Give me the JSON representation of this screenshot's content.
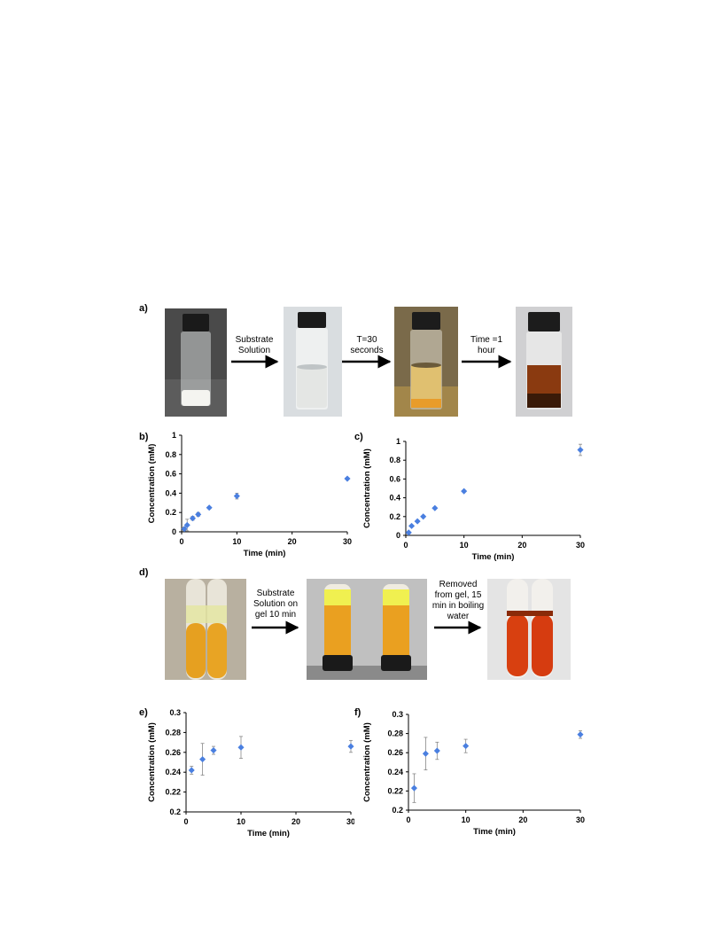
{
  "labels": {
    "a": "a)",
    "b": "b)",
    "c": "c)",
    "d": "d)",
    "e": "e)",
    "f": "f)"
  },
  "row_a_steps": [
    [
      "Substrate",
      "Solution"
    ],
    [
      "T=30",
      "seconds"
    ],
    [
      "Time =1",
      "hour"
    ]
  ],
  "row_d_steps": [
    [
      "Substrate",
      "Solution on",
      "gel 10 min"
    ],
    [
      "Removed",
      "from gel, 15",
      "min in boiling",
      "water"
    ]
  ],
  "colors": {
    "marker": "#4a7fe0",
    "errorbar": "#888888"
  },
  "chart_data": [
    {
      "panel": "b",
      "type": "scatter",
      "xlabel": "Time (min)",
      "ylabel": "Concentration (mM)",
      "xlim": [
        0,
        30
      ],
      "ylim": [
        0,
        1
      ],
      "xticks": [
        "0",
        "10",
        "20",
        "30"
      ],
      "yticks": [
        "0",
        "0.2",
        "0.4",
        "0.6",
        "0.8",
        "1"
      ],
      "x": [
        0.5,
        1,
        2,
        3,
        5,
        10,
        30
      ],
      "y": [
        0.03,
        0.07,
        0.14,
        0.18,
        0.25,
        0.37,
        0.55
      ],
      "err": [
        0.02,
        0.06,
        0.02,
        0.02,
        0.01,
        0.03,
        0.01
      ]
    },
    {
      "panel": "c",
      "type": "scatter",
      "xlabel": "Time (min)",
      "ylabel": "Concentration (mM)",
      "xlim": [
        0,
        30
      ],
      "ylim": [
        0,
        1
      ],
      "xticks": [
        "0",
        "10",
        "20",
        "30"
      ],
      "yticks": [
        "0",
        "0.2",
        "0.4",
        "0.6",
        "0.8",
        "1"
      ],
      "x": [
        0.5,
        1,
        2,
        3,
        5,
        10,
        30
      ],
      "y": [
        0.03,
        0.1,
        0.15,
        0.2,
        0.29,
        0.47,
        0.91
      ],
      "err": [
        0.01,
        0.01,
        0.01,
        0.01,
        0.01,
        0.01,
        0.06
      ]
    },
    {
      "panel": "e",
      "type": "scatter",
      "xlabel": "Time (min)",
      "ylabel": "Concentration (mM)",
      "xlim": [
        0,
        30
      ],
      "ylim": [
        0.2,
        0.3
      ],
      "xticks": [
        "0",
        "10",
        "20",
        "30"
      ],
      "yticks": [
        "0.2",
        "0.22",
        "0.24",
        "0.26",
        "0.28",
        "0.3"
      ],
      "x": [
        1,
        3,
        5,
        10,
        30
      ],
      "y": [
        0.242,
        0.253,
        0.262,
        0.265,
        0.266
      ],
      "err": [
        0.004,
        0.016,
        0.004,
        0.011,
        0.006
      ]
    },
    {
      "panel": "f",
      "type": "scatter",
      "xlabel": "Time (min)",
      "ylabel": "Concentration (mM)",
      "xlim": [
        0,
        30
      ],
      "ylim": [
        0.2,
        0.3
      ],
      "xticks": [
        "0",
        "10",
        "20",
        "30"
      ],
      "yticks": [
        "0.2",
        "0.22",
        "0.24",
        "0.26",
        "0.28",
        "0.3"
      ],
      "x": [
        1,
        3,
        5,
        10,
        30
      ],
      "y": [
        0.223,
        0.259,
        0.262,
        0.267,
        0.279
      ],
      "err": [
        0.015,
        0.017,
        0.009,
        0.007,
        0.004
      ]
    }
  ]
}
